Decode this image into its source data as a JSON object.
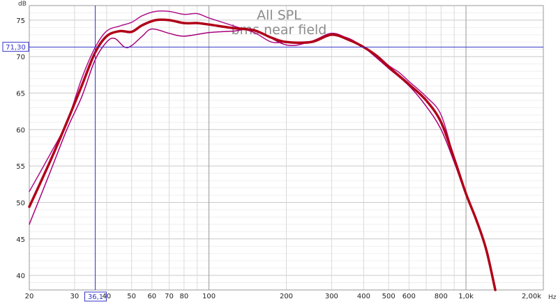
{
  "chart_data": {
    "type": "line",
    "title": "All SPL",
    "subtitle": "bms near field",
    "ylabel": "dB",
    "xlabel": "Hz",
    "x_scale": "log",
    "xlim": [
      20,
      2000
    ],
    "ylim": [
      38,
      77
    ],
    "grid": true,
    "x_ticks": [
      {
        "value": 20,
        "label": "20"
      },
      {
        "value": 30,
        "label": "30"
      },
      {
        "value": 40,
        "label": "40"
      },
      {
        "value": 50,
        "label": "50"
      },
      {
        "value": 60,
        "label": "60"
      },
      {
        "value": 70,
        "label": "70"
      },
      {
        "value": 80,
        "label": "80"
      },
      {
        "value": 100,
        "label": "100"
      },
      {
        "value": 200,
        "label": "200"
      },
      {
        "value": 300,
        "label": "300"
      },
      {
        "value": 400,
        "label": "400"
      },
      {
        "value": 500,
        "label": "500"
      },
      {
        "value": 600,
        "label": "600"
      },
      {
        "value": 800,
        "label": "800"
      },
      {
        "value": 1000,
        "label": "1,0k"
      },
      {
        "value": 2000,
        "label": "2,00k"
      }
    ],
    "y_ticks": [
      {
        "value": 40,
        "label": "40"
      },
      {
        "value": 45,
        "label": "45"
      },
      {
        "value": 50,
        "label": "50"
      },
      {
        "value": 55,
        "label": "55"
      },
      {
        "value": 60,
        "label": "60"
      },
      {
        "value": 65,
        "label": "65"
      },
      {
        "value": 70,
        "label": "70"
      },
      {
        "value": 75,
        "label": "75"
      }
    ],
    "cursor": {
      "x": 36.1,
      "y": 71.3,
      "x_label": "36,1",
      "y_label": "71,30",
      "color": "#3333cc"
    },
    "series": [
      {
        "color": "#a8007a",
        "width": 1.5,
        "points": [
          [
            20,
            47
          ],
          [
            24,
            54
          ],
          [
            28,
            60
          ],
          [
            32,
            64.5
          ],
          [
            36,
            69.5
          ],
          [
            40,
            72
          ],
          [
            43,
            72.5
          ],
          [
            47,
            71.3
          ],
          [
            50,
            71.5
          ],
          [
            55,
            72.8
          ],
          [
            60,
            73.8
          ],
          [
            70,
            73.2
          ],
          [
            80,
            72.8
          ],
          [
            100,
            73.3
          ],
          [
            125,
            73.5
          ],
          [
            150,
            73.7
          ],
          [
            200,
            71.6
          ],
          [
            250,
            72.1
          ],
          [
            300,
            73.2
          ],
          [
            350,
            72.4
          ],
          [
            400,
            71.3
          ],
          [
            500,
            68.4
          ],
          [
            600,
            66
          ],
          [
            700,
            63.2
          ],
          [
            800,
            60
          ],
          [
            900,
            55.5
          ],
          [
            1000,
            51
          ],
          [
            1100,
            47.5
          ],
          [
            1200,
            43.5
          ],
          [
            1300,
            38
          ]
        ]
      },
      {
        "color": "#b0108a",
        "width": 1.5,
        "points": [
          [
            20,
            51.5
          ],
          [
            24,
            56.5
          ],
          [
            28,
            61
          ],
          [
            32,
            67
          ],
          [
            36,
            71.2
          ],
          [
            40,
            73.5
          ],
          [
            45,
            74.2
          ],
          [
            50,
            74.7
          ],
          [
            55,
            75.6
          ],
          [
            62,
            76.2
          ],
          [
            70,
            76.2
          ],
          [
            80,
            75.8
          ],
          [
            90,
            75.9
          ],
          [
            100,
            75.3
          ],
          [
            125,
            74.2
          ],
          [
            150,
            73.3
          ],
          [
            175,
            72
          ],
          [
            200,
            72
          ],
          [
            250,
            72.1
          ],
          [
            300,
            73
          ],
          [
            350,
            72.5
          ],
          [
            400,
            71.3
          ],
          [
            450,
            70.2
          ],
          [
            500,
            68.8
          ],
          [
            550,
            67.8
          ],
          [
            600,
            66.6
          ],
          [
            700,
            64.5
          ],
          [
            800,
            62
          ],
          [
            900,
            56
          ],
          [
            1000,
            51
          ],
          [
            1100,
            47.5
          ],
          [
            1200,
            43.5
          ],
          [
            1300,
            38
          ]
        ]
      },
      {
        "color": "#b00018",
        "width": 3.5,
        "points": [
          [
            20,
            49.4
          ],
          [
            24,
            55.5
          ],
          [
            28,
            61
          ],
          [
            32,
            66
          ],
          [
            36,
            70.5
          ],
          [
            40,
            72.8
          ],
          [
            45,
            73.5
          ],
          [
            50,
            73.4
          ],
          [
            55,
            74.3
          ],
          [
            62,
            75
          ],
          [
            70,
            75
          ],
          [
            80,
            74.6
          ],
          [
            90,
            74.6
          ],
          [
            100,
            74.4
          ],
          [
            125,
            73.9
          ],
          [
            150,
            73.6
          ],
          [
            175,
            72.6
          ],
          [
            200,
            72
          ],
          [
            250,
            72
          ],
          [
            300,
            73
          ],
          [
            350,
            72.3
          ],
          [
            400,
            71.3
          ],
          [
            450,
            70.1
          ],
          [
            500,
            68.6
          ],
          [
            600,
            66.2
          ],
          [
            700,
            64
          ],
          [
            800,
            61
          ],
          [
            900,
            56
          ],
          [
            1000,
            51.2
          ],
          [
            1100,
            47.5
          ],
          [
            1200,
            43.5
          ],
          [
            1300,
            38
          ]
        ]
      }
    ]
  }
}
